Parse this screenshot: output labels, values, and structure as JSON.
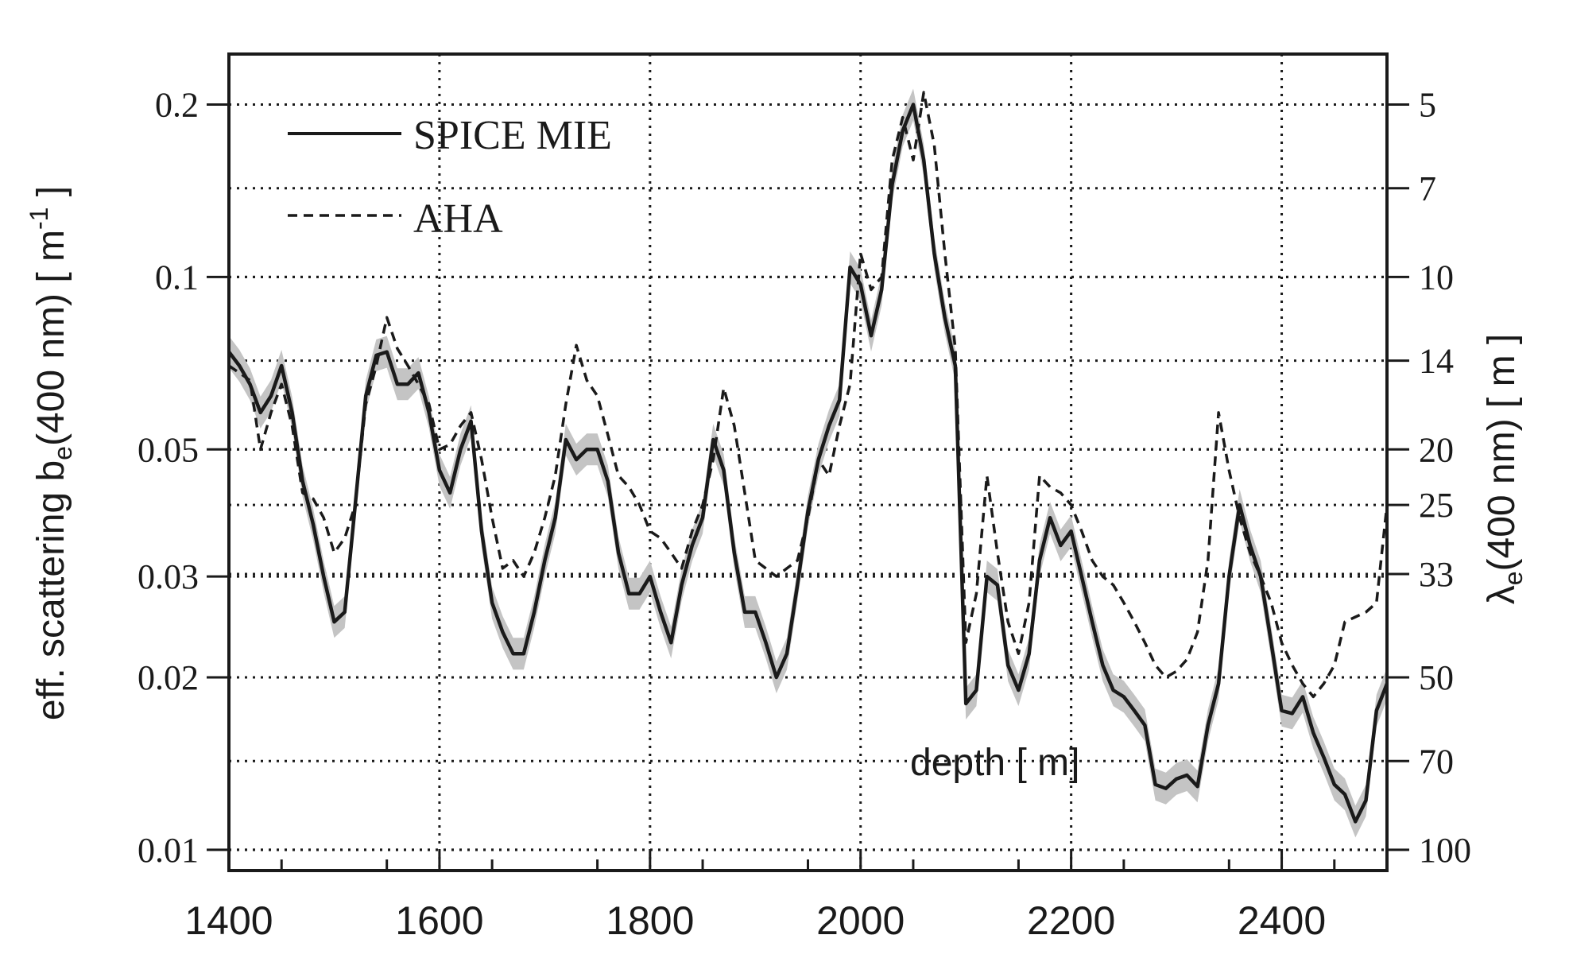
{
  "chart_data": {
    "type": "line",
    "title": "",
    "xlabel": "depth [ m]",
    "ylabel": "eff. scattering b",
    "ylabel_sub": "e",
    "ylabel_tail": "(400 nm) [ m",
    "ylabel_sup": "-1",
    "ylabel_end": " ]",
    "y2label_head": "λ",
    "y2label_sub": "e",
    "y2label_tail": "(400 nm) [ m ]",
    "xlim": [
      1400,
      2500
    ],
    "ylim": [
      0.0092,
      0.245
    ],
    "yscale": "log",
    "grid": true,
    "legend_position": "top-left",
    "x_ticks": [
      "1400",
      "1600",
      "1800",
      "2000",
      "2200",
      "2400"
    ],
    "y_ticks": [
      "0.01",
      "0.02",
      "0.03",
      "0.05",
      "0.1",
      "0.2"
    ],
    "y2_ticks": [
      "5",
      "7",
      "10",
      "14",
      "20",
      "25",
      "33",
      "50",
      "70",
      "100"
    ],
    "series": [
      {
        "name": "SPICE MIE",
        "style": "solid",
        "uncertainty_band": true,
        "x": [
          1400,
          1410,
          1420,
          1430,
          1440,
          1450,
          1460,
          1470,
          1480,
          1490,
          1500,
          1510,
          1520,
          1530,
          1540,
          1550,
          1560,
          1570,
          1580,
          1590,
          1600,
          1610,
          1620,
          1630,
          1640,
          1650,
          1660,
          1670,
          1680,
          1690,
          1700,
          1710,
          1720,
          1730,
          1740,
          1750,
          1760,
          1770,
          1780,
          1790,
          1800,
          1810,
          1820,
          1830,
          1840,
          1850,
          1860,
          1870,
          1880,
          1890,
          1900,
          1910,
          1920,
          1930,
          1940,
          1950,
          1960,
          1970,
          1980,
          1990,
          2000,
          2010,
          2020,
          2030,
          2040,
          2050,
          2060,
          2070,
          2080,
          2090,
          2100,
          2110,
          2120,
          2130,
          2140,
          2150,
          2160,
          2170,
          2180,
          2190,
          2200,
          2210,
          2220,
          2230,
          2240,
          2250,
          2260,
          2270,
          2280,
          2290,
          2300,
          2310,
          2320,
          2330,
          2340,
          2350,
          2360,
          2370,
          2380,
          2390,
          2400,
          2410,
          2420,
          2430,
          2440,
          2450,
          2460,
          2470,
          2480,
          2490,
          2500
        ],
        "values": [
          0.074,
          0.07,
          0.065,
          0.058,
          0.062,
          0.07,
          0.058,
          0.044,
          0.037,
          0.03,
          0.025,
          0.026,
          0.04,
          0.062,
          0.073,
          0.074,
          0.065,
          0.065,
          0.068,
          0.058,
          0.046,
          0.042,
          0.05,
          0.056,
          0.036,
          0.027,
          0.024,
          0.022,
          0.022,
          0.026,
          0.032,
          0.038,
          0.052,
          0.048,
          0.05,
          0.05,
          0.044,
          0.033,
          0.028,
          0.028,
          0.03,
          0.026,
          0.023,
          0.029,
          0.034,
          0.038,
          0.052,
          0.046,
          0.033,
          0.026,
          0.026,
          0.023,
          0.02,
          0.022,
          0.029,
          0.039,
          0.048,
          0.055,
          0.061,
          0.104,
          0.097,
          0.079,
          0.095,
          0.145,
          0.18,
          0.2,
          0.16,
          0.11,
          0.085,
          0.07,
          0.018,
          0.019,
          0.03,
          0.029,
          0.021,
          0.019,
          0.022,
          0.032,
          0.038,
          0.034,
          0.036,
          0.03,
          0.025,
          0.021,
          0.019,
          0.0185,
          0.0175,
          0.0165,
          0.013,
          0.0128,
          0.0133,
          0.0135,
          0.0129,
          0.0165,
          0.0195,
          0.03,
          0.04,
          0.034,
          0.03,
          0.023,
          0.0175,
          0.0173,
          0.0185,
          0.016,
          0.0145,
          0.013,
          0.0125,
          0.0112,
          0.0122,
          0.0175,
          0.0195
        ]
      },
      {
        "name": "AHA",
        "style": "dashed",
        "x": [
          1400,
          1410,
          1420,
          1430,
          1440,
          1450,
          1460,
          1470,
          1480,
          1490,
          1500,
          1510,
          1520,
          1530,
          1540,
          1550,
          1560,
          1570,
          1580,
          1590,
          1600,
          1610,
          1620,
          1630,
          1640,
          1650,
          1660,
          1670,
          1680,
          1690,
          1700,
          1710,
          1720,
          1730,
          1740,
          1750,
          1760,
          1770,
          1780,
          1790,
          1800,
          1810,
          1820,
          1830,
          1840,
          1850,
          1860,
          1870,
          1880,
          1890,
          1900,
          1910,
          1920,
          1930,
          1940,
          1950,
          1960,
          1970,
          1980,
          1990,
          2000,
          2010,
          2020,
          2030,
          2040,
          2050,
          2060,
          2070,
          2080,
          2090,
          2100,
          2110,
          2120,
          2130,
          2140,
          2150,
          2160,
          2170,
          2180,
          2190,
          2200,
          2210,
          2220,
          2230,
          2240,
          2250,
          2260,
          2270,
          2280,
          2290,
          2300,
          2310,
          2320,
          2330,
          2340,
          2350,
          2360,
          2370,
          2380,
          2390,
          2400,
          2410,
          2420,
          2430,
          2440,
          2450,
          2460,
          2470,
          2480,
          2490,
          2500
        ],
        "values": [
          0.07,
          0.068,
          0.066,
          0.05,
          0.058,
          0.065,
          0.055,
          0.042,
          0.041,
          0.038,
          0.033,
          0.035,
          0.04,
          0.06,
          0.07,
          0.085,
          0.075,
          0.07,
          0.065,
          0.06,
          0.05,
          0.051,
          0.055,
          0.058,
          0.048,
          0.038,
          0.031,
          0.032,
          0.03,
          0.033,
          0.038,
          0.045,
          0.06,
          0.076,
          0.066,
          0.062,
          0.053,
          0.045,
          0.043,
          0.04,
          0.036,
          0.035,
          0.033,
          0.031,
          0.036,
          0.04,
          0.048,
          0.064,
          0.055,
          0.042,
          0.032,
          0.031,
          0.03,
          0.031,
          0.032,
          0.038,
          0.048,
          0.045,
          0.055,
          0.065,
          0.11,
          0.095,
          0.1,
          0.16,
          0.19,
          0.16,
          0.21,
          0.17,
          0.11,
          0.075,
          0.023,
          0.028,
          0.045,
          0.033,
          0.025,
          0.022,
          0.027,
          0.045,
          0.043,
          0.042,
          0.04,
          0.036,
          0.032,
          0.03,
          0.029,
          0.027,
          0.025,
          0.023,
          0.021,
          0.02,
          0.0205,
          0.0215,
          0.024,
          0.032,
          0.058,
          0.046,
          0.038,
          0.033,
          0.03,
          0.027,
          0.023,
          0.021,
          0.0195,
          0.0185,
          0.0195,
          0.021,
          0.025,
          0.0255,
          0.026,
          0.027,
          0.04
        ]
      }
    ]
  }
}
